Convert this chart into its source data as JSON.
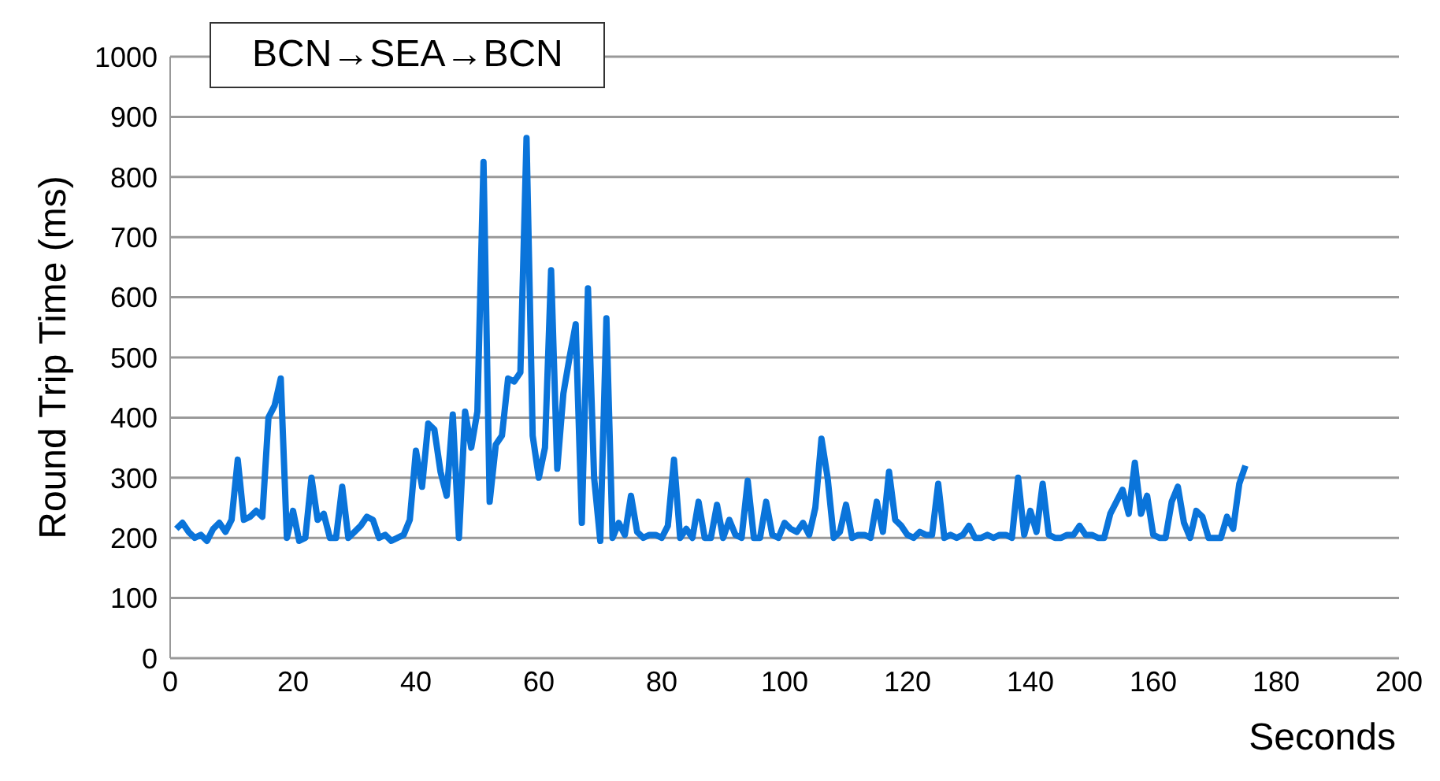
{
  "chart_data": {
    "type": "line",
    "xlabel": "Seconds",
    "ylabel": "Round Trip Time (ms)",
    "annotations": [
      "BCN→SEA→BCN"
    ],
    "x": [
      1,
      2,
      3,
      4,
      5,
      6,
      7,
      8,
      9,
      10,
      11,
      12,
      13,
      14,
      15,
      16,
      17,
      18,
      19,
      20,
      21,
      22,
      23,
      24,
      25,
      26,
      27,
      28,
      29,
      30,
      31,
      32,
      33,
      34,
      35,
      36,
      37,
      38,
      39,
      40,
      41,
      42,
      43,
      44,
      45,
      46,
      47,
      48,
      49,
      50,
      51,
      52,
      53,
      54,
      55,
      56,
      57,
      58,
      59,
      60,
      61,
      62,
      63,
      64,
      65,
      66,
      67,
      68,
      69,
      70,
      71,
      72,
      73,
      74,
      75,
      76,
      77,
      78,
      79,
      80,
      81,
      82,
      83,
      84,
      85,
      86,
      87,
      88,
      89,
      90,
      91,
      92,
      93,
      94,
      95,
      96,
      97,
      98,
      99,
      100,
      101,
      102,
      103,
      104,
      105,
      106,
      107,
      108,
      109,
      110,
      111,
      112,
      113,
      114,
      115,
      116,
      117,
      118,
      119,
      120,
      121,
      122,
      123,
      124,
      125,
      126,
      127,
      128,
      129,
      130,
      131,
      132,
      133,
      134,
      135,
      136,
      137,
      138,
      139,
      140,
      141,
      142,
      143,
      144,
      145,
      146,
      147,
      148,
      149,
      150,
      151,
      152,
      153,
      154,
      155,
      156,
      157,
      158,
      159,
      160,
      161,
      162,
      163,
      164,
      165,
      166,
      167,
      168,
      169,
      170,
      171,
      172,
      173,
      174,
      175
    ],
    "series": [
      {
        "color": "#0a74da",
        "values": [
          215,
          225,
          210,
          200,
          205,
          195,
          215,
          225,
          210,
          230,
          330,
          230,
          235,
          245,
          235,
          400,
          420,
          465,
          200,
          245,
          195,
          200,
          300,
          230,
          240,
          200,
          200,
          285,
          200,
          210,
          220,
          235,
          230,
          200,
          205,
          195,
          200,
          205,
          230,
          345,
          285,
          390,
          380,
          310,
          270,
          405,
          200,
          410,
          350,
          410,
          825,
          260,
          355,
          370,
          465,
          460,
          475,
          865,
          370,
          300,
          350,
          645,
          315,
          440,
          500,
          555,
          225,
          615,
          300,
          195,
          565,
          200,
          225,
          205,
          270,
          210,
          200,
          205,
          205,
          200,
          220,
          330,
          200,
          215,
          200,
          260,
          200,
          200,
          255,
          200,
          230,
          205,
          200,
          295,
          200,
          200,
          260,
          205,
          200,
          225,
          215,
          210,
          225,
          205,
          250,
          365,
          300,
          200,
          210,
          255,
          200,
          205,
          205,
          200,
          260,
          210,
          310,
          230,
          220,
          205,
          200,
          210,
          205,
          205,
          290,
          200,
          205,
          200,
          205,
          220,
          200,
          200,
          205,
          200,
          205,
          205,
          200,
          300,
          205,
          245,
          210,
          290,
          205,
          200,
          200,
          205,
          205,
          220,
          205,
          205,
          200,
          200,
          240,
          260,
          280,
          240,
          325,
          240,
          270,
          205,
          200,
          200,
          260,
          285,
          225,
          200,
          245,
          235,
          200,
          200,
          200,
          235,
          215,
          290,
          320
        ]
      }
    ],
    "xlim": [
      0,
      200
    ],
    "xticks": [
      0,
      20,
      40,
      60,
      80,
      100,
      120,
      140,
      160,
      180,
      200
    ],
    "ylim": [
      0,
      1000
    ],
    "yticks": [
      0,
      100,
      200,
      300,
      400,
      500,
      600,
      700,
      800,
      900,
      1000
    ],
    "grid": "y",
    "marker": "none",
    "line_style": "solid",
    "legend": false
  }
}
